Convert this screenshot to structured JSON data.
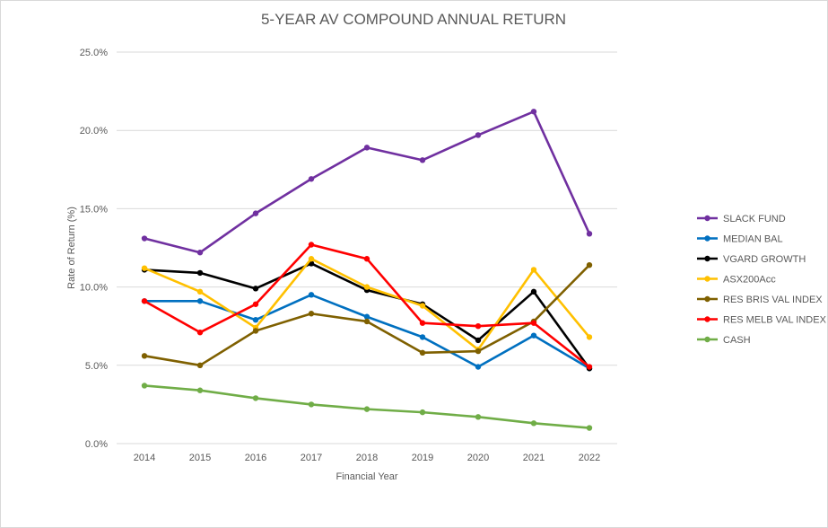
{
  "chart_data": {
    "type": "line",
    "title": "5-YEAR AV COMPOUND ANNUAL RETURN",
    "xlabel": "Financial Year",
    "ylabel": "Rate of Return (%)",
    "categories": [
      "2014",
      "2015",
      "2016",
      "2017",
      "2018",
      "2019",
      "2020",
      "2021",
      "2022"
    ],
    "ylim": [
      0,
      25
    ],
    "yticks": [
      0,
      5,
      10,
      15,
      20,
      25
    ],
    "ytick_labels": [
      "0.0%",
      "5.0%",
      "10.0%",
      "15.0%",
      "20.0%",
      "25.0%"
    ],
    "grid": "horizontal",
    "legend_position": "right",
    "series": [
      {
        "name": "SLACK FUND",
        "color": "#7030a0",
        "values": [
          13.1,
          12.2,
          14.7,
          16.9,
          18.9,
          18.1,
          19.7,
          21.2,
          13.4
        ]
      },
      {
        "name": "MEDIAN BAL",
        "color": "#0070c0",
        "values": [
          9.1,
          9.1,
          7.9,
          9.5,
          8.1,
          6.8,
          4.9,
          6.9,
          4.8
        ]
      },
      {
        "name": "VGARD GROWTH",
        "color": "#000000",
        "values": [
          11.1,
          10.9,
          9.9,
          11.5,
          9.8,
          8.9,
          6.6,
          9.7,
          4.8
        ]
      },
      {
        "name": "ASX200Acc",
        "color": "#ffc000",
        "values": [
          11.2,
          9.7,
          7.4,
          11.8,
          10.0,
          8.8,
          6.0,
          11.1,
          6.8
        ]
      },
      {
        "name": "RES BRIS VAL INDEX",
        "color": "#7f6000",
        "values": [
          5.6,
          5.0,
          7.2,
          8.3,
          7.8,
          5.8,
          5.9,
          7.8,
          11.4
        ]
      },
      {
        "name": "RES MELB VAL INDEX",
        "color": "#ff0000",
        "values": [
          9.1,
          7.1,
          8.9,
          12.7,
          11.8,
          7.7,
          7.5,
          7.7,
          4.9
        ]
      },
      {
        "name": "CASH",
        "color": "#70ad47",
        "values": [
          3.7,
          3.4,
          2.9,
          2.5,
          2.2,
          2.0,
          1.7,
          1.3,
          1.0
        ]
      }
    ]
  }
}
